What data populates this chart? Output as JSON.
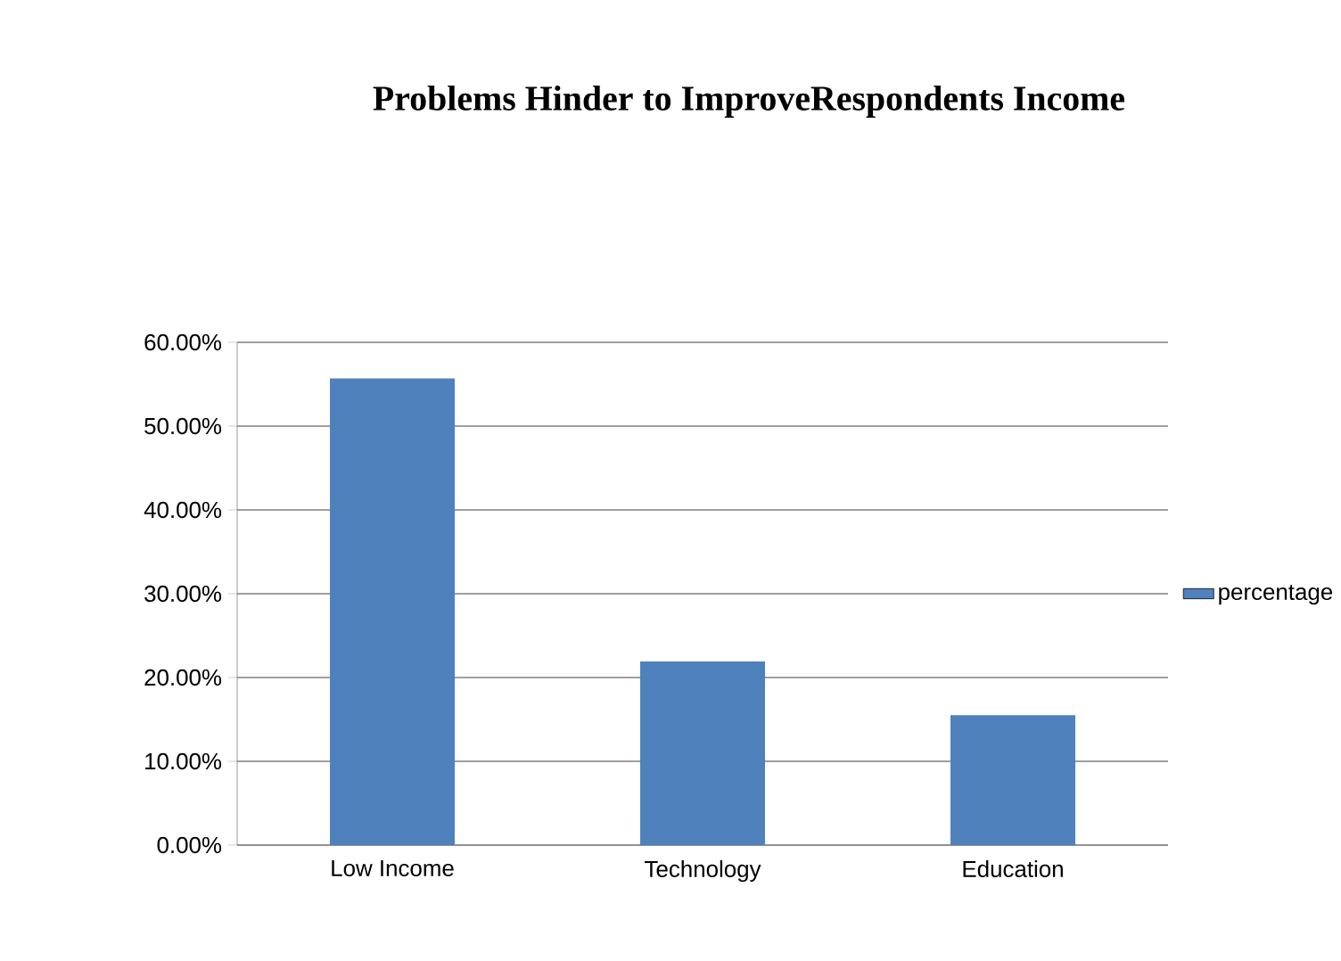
{
  "chart_data": {
    "type": "bar",
    "title": "Problems Hinder to ImproveRespondents Income",
    "categories": [
      "Low Income",
      "Technology",
      "Education"
    ],
    "series": [
      {
        "name": "percentage",
        "color": "#4f81bd",
        "values": [
          55.7,
          21.9,
          15.5
        ]
      }
    ],
    "ylim": [
      0,
      60
    ],
    "yticks": [
      {
        "value": 0,
        "label": "0.00%"
      },
      {
        "value": 10,
        "label": "10.00%"
      },
      {
        "value": 20,
        "label": "20.00%"
      },
      {
        "value": 30,
        "label": "30.00%"
      },
      {
        "value": 40,
        "label": "40.00%"
      },
      {
        "value": 50,
        "label": "50.00%"
      },
      {
        "value": 60,
        "label": "60.00%"
      }
    ],
    "grid": "y",
    "legend": "right"
  }
}
